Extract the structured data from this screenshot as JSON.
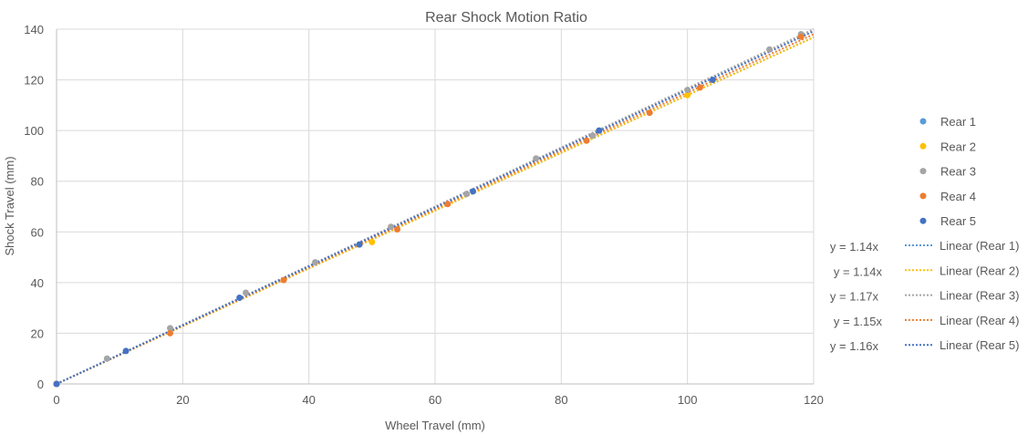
{
  "chart_data": {
    "type": "scatter",
    "title": "Rear Shock Motion Ratio",
    "xlabel": "Wheel Travel (mm)",
    "ylabel": "Shock Travel (mm)",
    "xlim": [
      0,
      120
    ],
    "ylim": [
      0,
      140
    ],
    "xticks": [
      "0",
      "20",
      "40",
      "60",
      "80",
      "100",
      "120"
    ],
    "yticks": [
      "0",
      "20",
      "40",
      "60",
      "80",
      "100",
      "120",
      "140"
    ],
    "grid": true,
    "legend_position": "right",
    "series": [
      {
        "name": "Rear 1",
        "color": "#5B9BD5",
        "points": [
          [
            0,
            0
          ]
        ],
        "trend_label": "Linear (Rear 1)",
        "equation": "y = 1.14x",
        "slope": 1.14
      },
      {
        "name": "Rear 2",
        "color": "#FFC000",
        "points": [
          [
            0,
            0
          ],
          [
            50,
            56
          ],
          [
            100,
            114
          ]
        ],
        "trend_label": "Linear (Rear 2)",
        "equation": "y = 1.14x",
        "slope": 1.14
      },
      {
        "name": "Rear 3",
        "color": "#A5A5A5",
        "points": [
          [
            0,
            0
          ],
          [
            8,
            10
          ],
          [
            18,
            22
          ],
          [
            30,
            36
          ],
          [
            41,
            48
          ],
          [
            53,
            62
          ],
          [
            65,
            75
          ],
          [
            76,
            89
          ],
          [
            85,
            98
          ],
          [
            100,
            116
          ],
          [
            113,
            132
          ],
          [
            118,
            138
          ]
        ],
        "trend_label": "Linear (Rear 3)",
        "equation": "y = 1.17x",
        "slope": 1.17
      },
      {
        "name": "Rear 4",
        "color": "#ED7D31",
        "points": [
          [
            0,
            0
          ],
          [
            18,
            20
          ],
          [
            36,
            41
          ],
          [
            54,
            61
          ],
          [
            62,
            71
          ],
          [
            84,
            96
          ],
          [
            94,
            107
          ],
          [
            102,
            117
          ],
          [
            118,
            137
          ]
        ],
        "trend_label": "Linear (Rear 4)",
        "equation": "y = 1.15x",
        "slope": 1.15
      },
      {
        "name": "Rear 5",
        "color": "#4472C4",
        "points": [
          [
            0,
            0
          ],
          [
            11,
            13
          ],
          [
            29,
            34
          ],
          [
            48,
            55
          ],
          [
            66,
            76
          ],
          [
            86,
            100
          ],
          [
            104,
            120
          ]
        ],
        "trend_label": "Linear (Rear 5)",
        "equation": "y = 1.16x",
        "slope": 1.16
      }
    ]
  }
}
